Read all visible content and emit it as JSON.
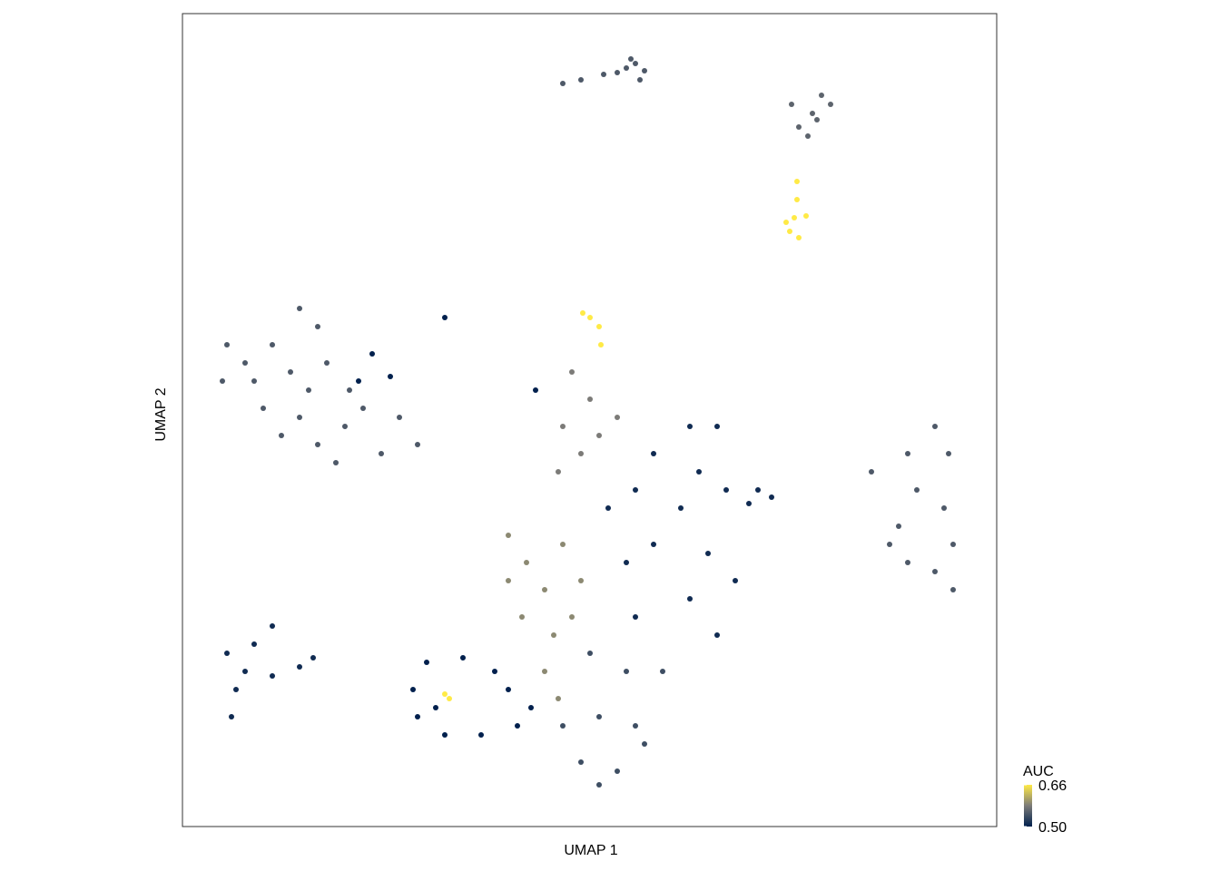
{
  "chart_data": {
    "type": "scatter",
    "x_label": "UMAP 1",
    "y_label": "UMAP 2",
    "xlim": [
      0,
      897
    ],
    "ylim": [
      0,
      896
    ],
    "colormap": [
      "#00204d",
      "#7c7b78",
      "#ffea46"
    ],
    "colorbar": {
      "title": "AUC",
      "lim": [
        0.5,
        0.66
      ],
      "ticks": [
        {
          "value": 0.66,
          "label": "0.66"
        },
        {
          "value": 0.5,
          "label": "0.50"
        }
      ]
    },
    "x": [
      489,
      499,
      479,
      509,
      464,
      439,
      419,
      494,
      504,
      704,
      714,
      694,
      679,
      699,
      671,
      689,
      677,
      677,
      674,
      687,
      665,
      679,
      669,
      129,
      149,
      99,
      49,
      44,
      79,
      119,
      159,
      89,
      129,
      149,
      169,
      179,
      199,
      239,
      259,
      219,
      69,
      139,
      184,
      109,
      229,
      209,
      194,
      289,
      389,
      441,
      459,
      461,
      449,
      429,
      449,
      419,
      459,
      439,
      414,
      479,
      359,
      379,
      399,
      419,
      439,
      374,
      409,
      429,
      399,
      414,
      359,
      559,
      589,
      519,
      569,
      499,
      549,
      599,
      469,
      519,
      579,
      609,
      489,
      559,
      589,
      499,
      449,
      489,
      529,
      419,
      459,
      499,
      439,
      479,
      509,
      459,
      829,
      844,
      799,
      759,
      809,
      839,
      789,
      849,
      799,
      829,
      849,
      779,
      99,
      79,
      49,
      69,
      99,
      129,
      144,
      59,
      54,
      269,
      309,
      344,
      254,
      259,
      289,
      329,
      369,
      359,
      384,
      279,
      289,
      294,
      634,
      649,
      624
    ],
    "y": [
      836,
      841,
      831,
      833,
      829,
      823,
      819,
      846,
      823,
      806,
      796,
      786,
      771,
      779,
      796,
      761,
      711,
      691,
      671,
      673,
      666,
      649,
      656,
      571,
      551,
      531,
      531,
      491,
      491,
      501,
      511,
      461,
      451,
      421,
      401,
      441,
      461,
      451,
      421,
      411,
      511,
      481,
      481,
      431,
      496,
      521,
      491,
      561,
      481,
      566,
      551,
      531,
      561,
      501,
      471,
      441,
      431,
      411,
      391,
      451,
      321,
      291,
      261,
      311,
      271,
      231,
      211,
      231,
      171,
      141,
      271,
      441,
      441,
      411,
      391,
      371,
      351,
      371,
      351,
      311,
      301,
      271,
      291,
      251,
      211,
      231,
      191,
      171,
      171,
      111,
      121,
      111,
      71,
      61,
      91,
      46,
      441,
      411,
      411,
      391,
      371,
      351,
      331,
      311,
      291,
      281,
      261,
      311,
      221,
      201,
      191,
      171,
      166,
      176,
      186,
      151,
      121,
      181,
      186,
      171,
      151,
      121,
      101,
      101,
      111,
      151,
      131,
      131,
      146,
      141,
      371,
      363,
      356
    ],
    "values": [
      0.55,
      0.55,
      0.55,
      0.55,
      0.55,
      0.55,
      0.55,
      0.55,
      0.55,
      0.56,
      0.56,
      0.56,
      0.56,
      0.56,
      0.56,
      0.56,
      0.66,
      0.66,
      0.66,
      0.66,
      0.66,
      0.66,
      0.66,
      0.55,
      0.55,
      0.55,
      0.55,
      0.55,
      0.55,
      0.55,
      0.55,
      0.55,
      0.55,
      0.55,
      0.55,
      0.55,
      0.55,
      0.55,
      0.55,
      0.55,
      0.55,
      0.55,
      0.55,
      0.55,
      0.5,
      0.5,
      0.5,
      0.5,
      0.5,
      0.66,
      0.66,
      0.66,
      0.66,
      0.58,
      0.58,
      0.58,
      0.58,
      0.58,
      0.58,
      0.58,
      0.59,
      0.59,
      0.59,
      0.59,
      0.59,
      0.59,
      0.59,
      0.59,
      0.59,
      0.59,
      0.59,
      0.51,
      0.51,
      0.51,
      0.51,
      0.51,
      0.51,
      0.51,
      0.51,
      0.51,
      0.51,
      0.51,
      0.51,
      0.51,
      0.51,
      0.51,
      0.54,
      0.54,
      0.54,
      0.54,
      0.54,
      0.54,
      0.54,
      0.54,
      0.54,
      0.54,
      0.55,
      0.55,
      0.55,
      0.55,
      0.55,
      0.55,
      0.55,
      0.55,
      0.55,
      0.55,
      0.55,
      0.55,
      0.51,
      0.51,
      0.51,
      0.51,
      0.51,
      0.51,
      0.51,
      0.51,
      0.51,
      0.5,
      0.5,
      0.5,
      0.5,
      0.5,
      0.5,
      0.5,
      0.5,
      0.5,
      0.5,
      0.5,
      0.66,
      0.66,
      0.51,
      0.51,
      0.51
    ]
  }
}
